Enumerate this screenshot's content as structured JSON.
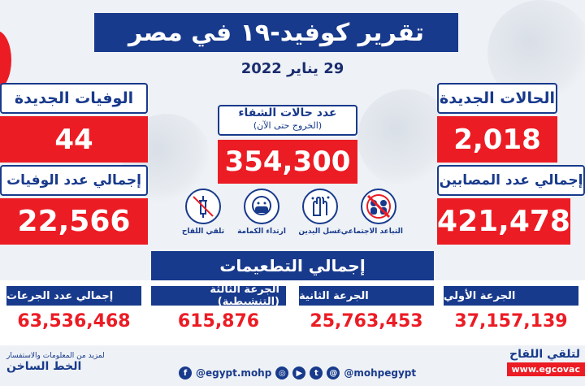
{
  "title": "تقرير كوفيد-١٩ في مصر",
  "date": "29 يناير 2022",
  "new_cases": {
    "label": "الحالات الجديدة",
    "value": "2,018"
  },
  "total_cases": {
    "label": "إجمالي عدد المصابين",
    "value": "421,478"
  },
  "new_deaths": {
    "label": "الوفيات الجديدة",
    "value": "44"
  },
  "total_deaths": {
    "label": "إجمالي عدد الوفيات",
    "value": "22,566"
  },
  "recoveries": {
    "label": "عدد حالات الشفاء",
    "sublabel": "(الخروج حتى الآن)",
    "value": "354,300"
  },
  "tips": [
    {
      "icon": "social-distancing-icon",
      "label": "التباعد الاجتماعي"
    },
    {
      "icon": "hand-washing-icon",
      "label": "غسل اليدين"
    },
    {
      "icon": "face-mask-icon",
      "label": "ارتداء الكمامة"
    },
    {
      "icon": "vaccine-syringe-icon",
      "label": "تلقي اللقاح"
    }
  ],
  "vaccinations": {
    "header": "إجمالي التطعيمات",
    "first_dose": {
      "label": "الجرعة الأولي",
      "value": "37,157,139"
    },
    "second_dose": {
      "label": "الجرعة الثانية",
      "value": "25,763,453"
    },
    "booster_dose": {
      "label": "الجرعة الثالثة (التنشيطية)",
      "value": "615,876"
    },
    "total_doses": {
      "label": "إجمالي عدد الجرعات",
      "value": "63,536,468"
    }
  },
  "footer": {
    "info_text": "لمزيد من المعلومات والاستفسار",
    "hotline": "الخط الساخن",
    "vaccine_text": "لتلقي اللقاح",
    "vaccine_site": "www.egcovac",
    "facebook": "@egypt.mohp",
    "social_handle": "@mohpegypt"
  },
  "colors": {
    "navy": "#183a8c",
    "red": "#ec1c24",
    "background": "#eef1f5"
  }
}
